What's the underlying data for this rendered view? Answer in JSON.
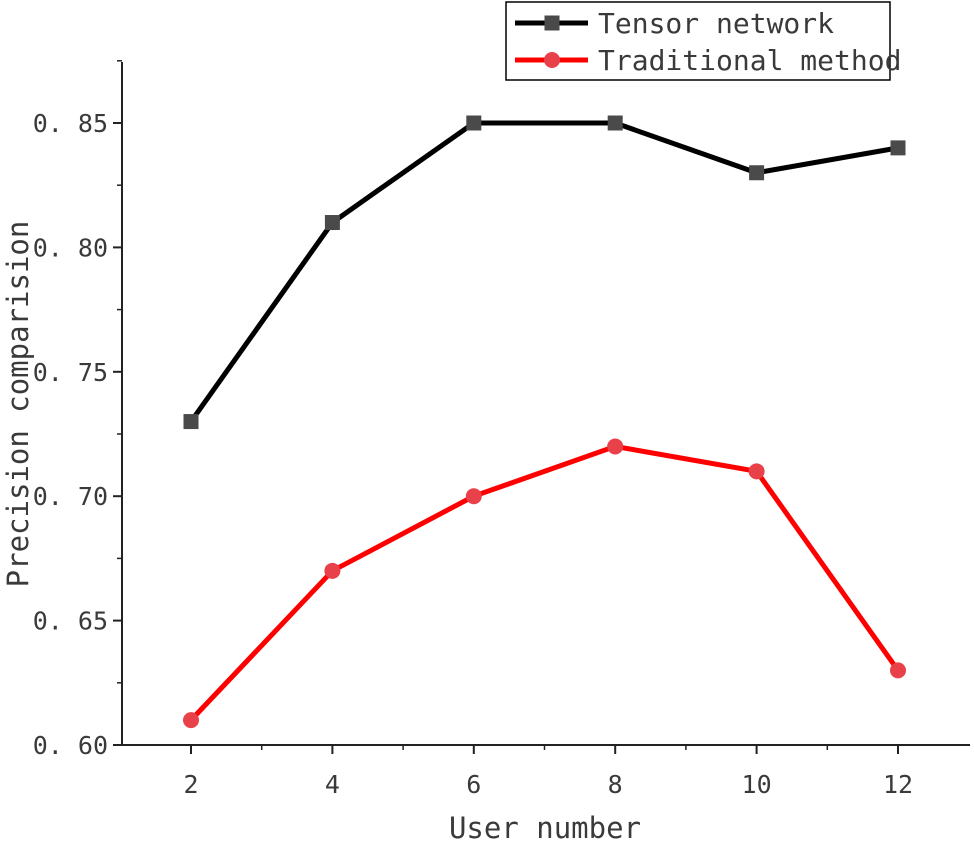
{
  "chart_data": {
    "type": "line",
    "title": "",
    "xlabel": "User number",
    "ylabel": "Precision comparision",
    "x": [
      2,
      4,
      6,
      8,
      10,
      12
    ],
    "xlim": [
      1,
      12.5
    ],
    "ylim": [
      0.6,
      0.875
    ],
    "xticks": [
      2,
      4,
      6,
      8,
      10,
      12
    ],
    "yticks": [
      0.6,
      0.65,
      0.7,
      0.75,
      0.8,
      0.85
    ],
    "ytick_labels": [
      "0. 60",
      "0. 65",
      "0. 70",
      "0. 75",
      "0. 80",
      "0. 85"
    ],
    "grid": false,
    "legend_position": "top-right",
    "series": [
      {
        "name": "Tensor network",
        "values": [
          0.73,
          0.81,
          0.85,
          0.85,
          0.83,
          0.84
        ],
        "line_color": "#000000",
        "marker": "square",
        "marker_color": "#4a4a4a"
      },
      {
        "name": "Traditional method",
        "values": [
          0.61,
          0.67,
          0.7,
          0.72,
          0.71,
          0.63
        ],
        "line_color": "#ff0000",
        "marker": "circle",
        "marker_color": "#e8414a"
      }
    ]
  }
}
